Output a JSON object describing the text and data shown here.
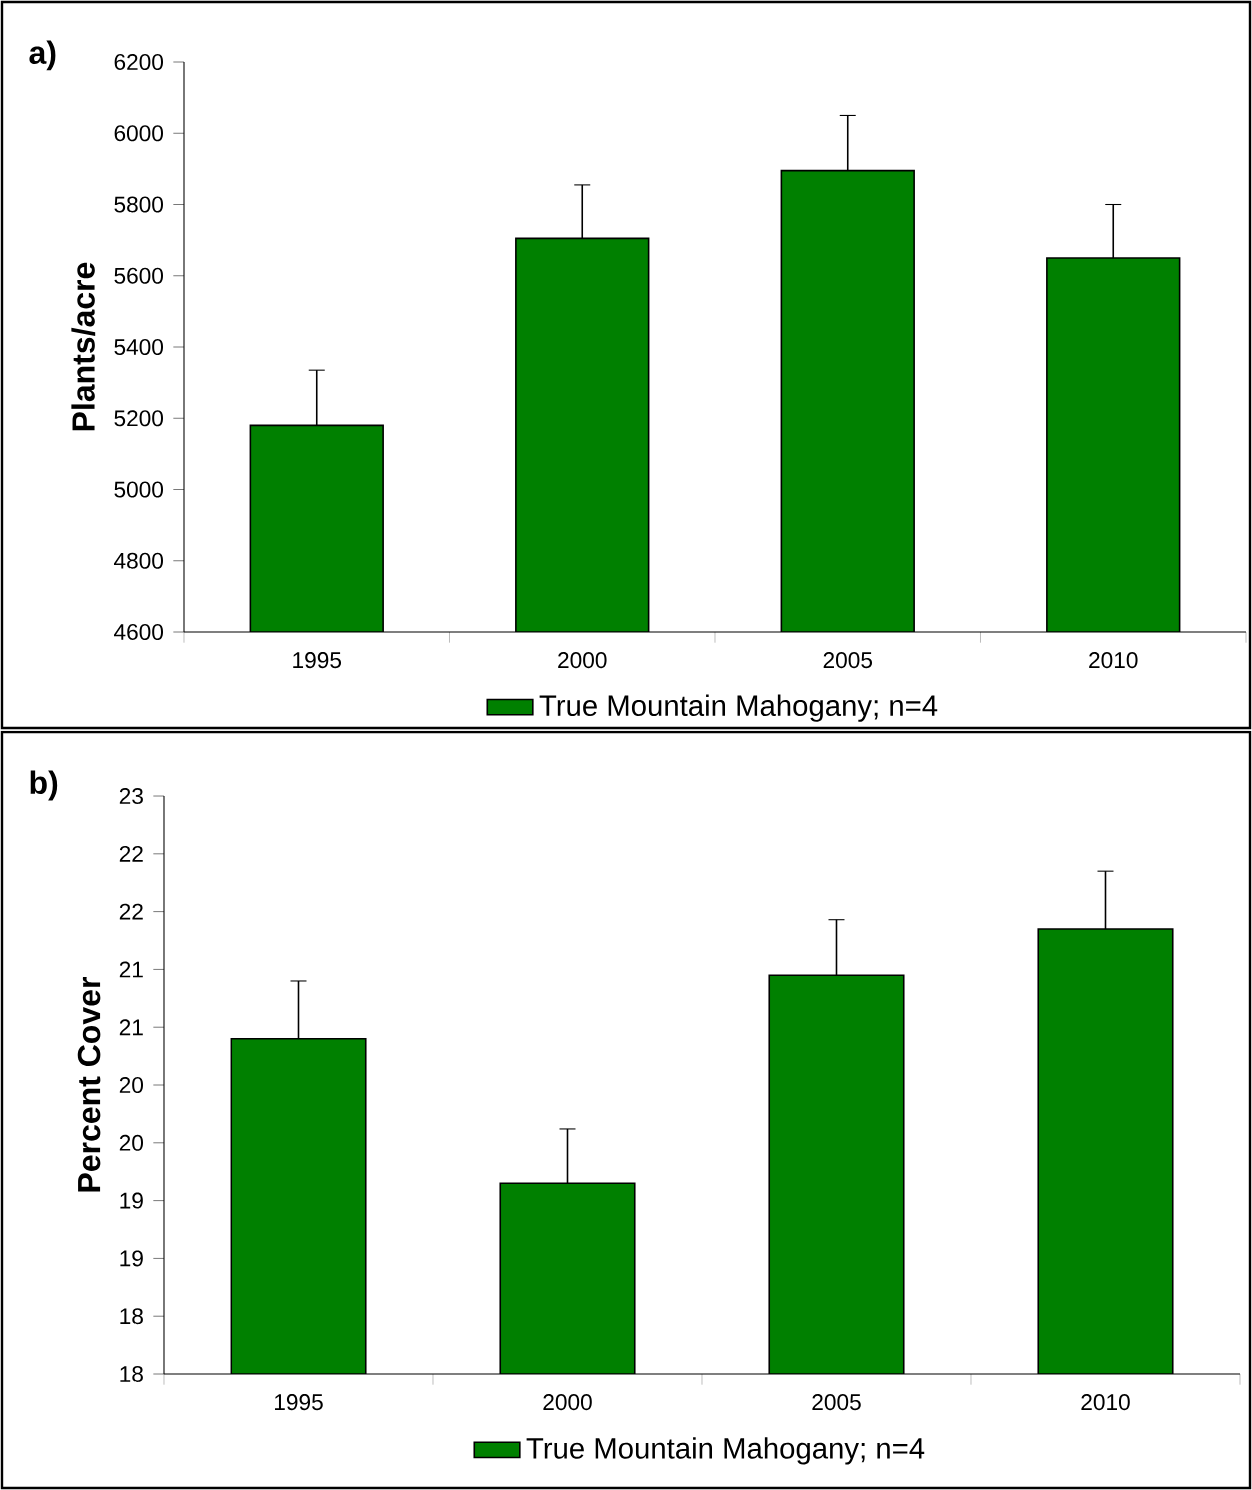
{
  "chart_data": [
    {
      "type": "bar",
      "ylabel": "Plants/acre",
      "annotations": [
        "a)"
      ],
      "categories": [
        "1995",
        "2000",
        "2005",
        "2010"
      ],
      "series": [
        {
          "name": "True Mountain Mahogany; n=4",
          "color": "#008000",
          "values": [
            5180,
            5705,
            5895,
            5650
          ],
          "errors": [
            155,
            150,
            155,
            150
          ]
        }
      ],
      "ylim": [
        4600,
        6200
      ],
      "yticks": [
        4600,
        4800,
        5000,
        5200,
        5400,
        5600,
        5800,
        6000,
        6200
      ],
      "legend": "bottom"
    },
    {
      "type": "bar",
      "ylabel": "Percent Cover",
      "annotations": [
        "b)"
      ],
      "categories": [
        "1995",
        "2000",
        "2005",
        "2010"
      ],
      "series": [
        {
          "name": "True Mountain Mahogany; n=4",
          "color": "#008000",
          "values": [
            20.9,
            19.65,
            21.45,
            21.85
          ],
          "errors": [
            0.5,
            0.47,
            0.48,
            0.5
          ]
        }
      ],
      "ylim": [
        18,
        23
      ],
      "yticks": [
        {
          "value": 18,
          "label": "18"
        },
        {
          "value": 18.5,
          "label": "18"
        },
        {
          "value": 19,
          "label": "19"
        },
        {
          "value": 19.5,
          "label": "19"
        },
        {
          "value": 20,
          "label": "20"
        },
        {
          "value": 20.5,
          "label": "20"
        },
        {
          "value": 21,
          "label": "21"
        },
        {
          "value": 21.5,
          "label": "21"
        },
        {
          "value": 22,
          "label": "22"
        },
        {
          "value": 22.5,
          "label": "22"
        },
        {
          "value": 23,
          "label": "23"
        }
      ],
      "legend": "bottom"
    }
  ]
}
